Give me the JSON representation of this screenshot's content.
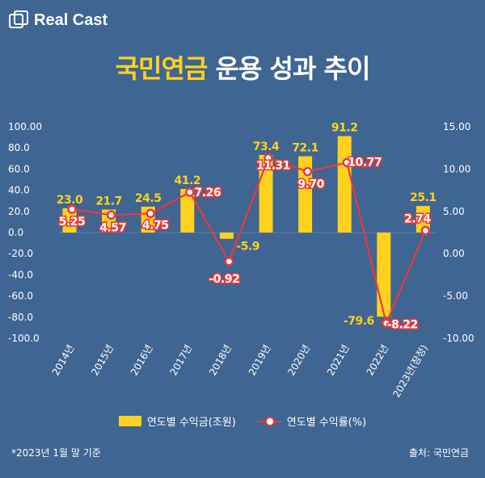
{
  "logo": {
    "text": "Real Cast"
  },
  "title": {
    "highlight": "국민연금",
    "rest": "운용 성과 추이"
  },
  "chart_data": {
    "type": "bar+line",
    "categories": [
      "2014년",
      "2015년",
      "2016년",
      "2017년",
      "2018년",
      "2019년",
      "2020년",
      "2021년",
      "2022년",
      "2023년(잠정)"
    ],
    "series": [
      {
        "name": "연도별 수익금(조원)",
        "type": "bar",
        "axis": "left",
        "values": [
          23.0,
          21.7,
          24.5,
          41.2,
          -5.9,
          73.4,
          72.1,
          91.2,
          -79.6,
          25.1
        ],
        "labels": [
          "23.0",
          "21.7",
          "24.5",
          "41.2",
          "-5.9",
          "73.4",
          "72.1",
          "91.2",
          "-79.6",
          "25.1"
        ]
      },
      {
        "name": "연도별 수익률(%)",
        "type": "line",
        "axis": "right",
        "values": [
          5.25,
          4.57,
          4.75,
          7.26,
          -0.92,
          11.31,
          9.7,
          10.77,
          -8.22,
          2.74
        ],
        "labels": [
          "5.25",
          "4.57",
          "4.75",
          "7.26",
          "-0.92",
          "11.31",
          "9.70",
          "10.77",
          "-8.22",
          "2.74"
        ]
      }
    ],
    "y_left": {
      "range": [
        -100,
        100
      ],
      "ticks": [
        "100.00",
        "80.0",
        "60.0",
        "40.0",
        "20.0",
        "0.0",
        "-20.0",
        "-40.0",
        "-60.0",
        "-80.0",
        "-100.0"
      ]
    },
    "y_right": {
      "range": [
        -10,
        15
      ],
      "ticks": [
        "15.00",
        "10.00",
        "5.00",
        "0.00",
        "-5.00",
        "-10.00"
      ]
    },
    "grid": false,
    "legend": "bottom",
    "colors": {
      "bar": "#ffd21f",
      "line": "#e83a3a",
      "background": "#3f6592"
    }
  },
  "footnote": "*2023년 1월 말 기준",
  "source": "출처: 국민연금"
}
